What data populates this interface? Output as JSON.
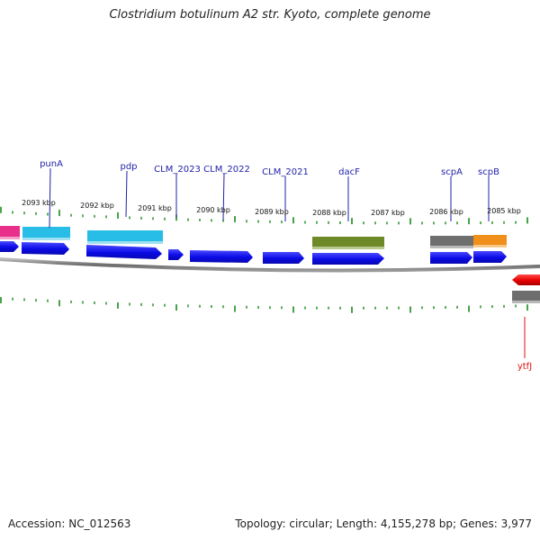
{
  "title": "Clostridium botulinum A2 str. Kyoto, complete genome",
  "accession": "Accession: NC_012563",
  "topology": "Topology: circular; Length: 4,155,278 bp; Genes: 3,977",
  "colors": {
    "tick": "#1a8a1a",
    "backbone": "#777777",
    "cds_forward": "#0a0ae6",
    "cds_reverse": "#e60000",
    "label": "#1f1fa8",
    "label_reverse": "#e01010"
  },
  "kbp_labels": [
    "2093 kbp",
    "2092 kbp",
    "2091 kbp",
    "2090 kbp",
    "2089 kbp",
    "2088 kbp",
    "2087 kbp",
    "2086 kbp",
    "2085 kbp"
  ],
  "gene_labels": [
    {
      "text": "punA",
      "color": "blue"
    },
    {
      "text": "pdp",
      "color": "blue"
    },
    {
      "text": "CLM_2023",
      "color": "blue"
    },
    {
      "text": "CLM_2022",
      "color": "blue"
    },
    {
      "text": "CLM_2021",
      "color": "blue"
    },
    {
      "text": "dacF",
      "color": "blue"
    },
    {
      "text": "scpA",
      "color": "blue"
    },
    {
      "text": "scpB",
      "color": "blue"
    },
    {
      "text": "ytfJ",
      "color": "red"
    }
  ],
  "feature_colors": {
    "punA": "#27bde6",
    "pdp": "#27bde6",
    "dacF": "#6e8a28",
    "scpA": "#6e6e6e",
    "scpB": "#f0901a",
    "ytfJ": "#6e6e6e",
    "left_partial": "#e8308a"
  }
}
